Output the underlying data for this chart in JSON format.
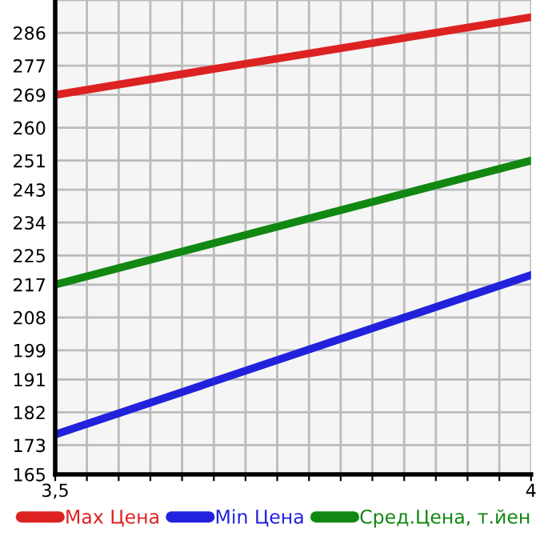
{
  "chart_data": {
    "type": "line",
    "x": [
      3.5,
      4
    ],
    "series": [
      {
        "name": "Max Цена",
        "color": "#dd2222",
        "values": [
          269,
          290.3
        ]
      },
      {
        "name": "Min Цена",
        "color": "#2222dd",
        "values": [
          175.9,
          219.6
        ]
      },
      {
        "name": "Сред.Цена, т.йен",
        "color": "#118811",
        "values": [
          217,
          251
        ]
      }
    ],
    "xlim": [
      3.5,
      4
    ],
    "xticks": [
      {
        "value": 3.5,
        "label": "3,5"
      },
      {
        "value": 3.5333,
        "label": null
      },
      {
        "value": 3.5667,
        "label": null
      },
      {
        "value": 3.6,
        "label": null
      },
      {
        "value": 3.6333,
        "label": null
      },
      {
        "value": 3.6667,
        "label": null
      },
      {
        "value": 3.7,
        "label": null
      },
      {
        "value": 3.7333,
        "label": null
      },
      {
        "value": 3.7667,
        "label": null
      },
      {
        "value": 3.8,
        "label": null
      },
      {
        "value": 3.8333,
        "label": null
      },
      {
        "value": 3.8667,
        "label": null
      },
      {
        "value": 3.9,
        "label": null
      },
      {
        "value": 3.9333,
        "label": null
      },
      {
        "value": 3.9667,
        "label": null
      },
      4
    ],
    "ylim": [
      165,
      295
    ],
    "yticks": [
      165,
      173,
      182,
      191,
      199,
      208,
      217,
      225,
      234,
      243,
      251,
      260,
      269,
      277,
      286,
      {
        "value": 295,
        "label": null
      }
    ],
    "grid": true,
    "legend": "bottom",
    "marker": "none",
    "line_style": "solid"
  }
}
